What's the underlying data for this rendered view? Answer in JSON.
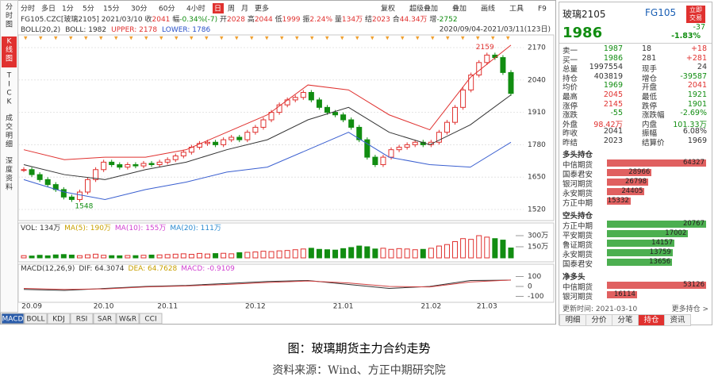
{
  "sidebar": [
    "分时图",
    "K线图",
    "TICK",
    "成交明细",
    "深度资料"
  ],
  "tabs": [
    "分时",
    "多日",
    "1分",
    "5分",
    "15分",
    "30分",
    "60分",
    "4小时",
    "日",
    "周",
    "月",
    "更多"
  ],
  "tools": [
    "复权",
    "超级叠加",
    "叠加",
    "画线",
    "工具",
    "F9",
    "隐藏"
  ],
  "info_head": [
    "FG105.CZC[玻璃2105]",
    "2021/03/10"
  ],
  "info": [
    {
      "k": "收",
      "v": "2041"
    },
    {
      "k": "幅",
      "v": "-0.34%(-7)"
    },
    {
      "k": "开",
      "v": "2028"
    },
    {
      "k": "高",
      "v": "2044"
    },
    {
      "k": "低",
      "v": "1999"
    },
    {
      "k": "振",
      "v": "2.24%"
    },
    {
      "k": "量",
      "v": "134万"
    },
    {
      "k": "结",
      "v": "2023"
    },
    {
      "k": "合",
      "v": "44.34万"
    },
    {
      "k": "增",
      "v": "-2752"
    }
  ],
  "boll_title": "BOLL(20,2)",
  "boll_items": [
    "BOLL: 1982",
    "UPPER: 2178",
    "LOWER: 1786"
  ],
  "range": "2020/09/04-2021/03/11(123日)",
  "kline": {
    "closes": [
      1680,
      1660,
      1640,
      1620,
      1600,
      1570,
      1560,
      1590,
      1640,
      1680,
      1710,
      1700,
      1690,
      1700,
      1695,
      1705,
      1700,
      1710,
      1720,
      1735,
      1750,
      1770,
      1785,
      1790,
      1780,
      1800,
      1810,
      1800,
      1830,
      1850,
      1880,
      1910,
      1940,
      1960,
      1970,
      1990,
      1960,
      1930,
      1910,
      1900,
      1880,
      1850,
      1800,
      1730,
      1700,
      1730,
      1760,
      1770,
      1780,
      1790,
      1780,
      1790,
      1830,
      1870,
      1930,
      2000,
      2060,
      2110,
      2140,
      2130,
      2070,
      1986
    ],
    "upper": [
      1760,
      1720,
      1730,
      1730,
      1760,
      1830,
      1900,
      2020,
      2000,
      1900,
      1840,
      2050,
      2180
    ],
    "mid": [
      1700,
      1660,
      1640,
      1680,
      1710,
      1760,
      1800,
      1880,
      1930,
      1830,
      1780,
      1860,
      1980
    ],
    "lower": [
      1640,
      1590,
      1560,
      1600,
      1630,
      1670,
      1690,
      1760,
      1830,
      1730,
      1700,
      1690,
      1790
    ],
    "high": 2159,
    "low": 1548,
    "ylim": [
      1520,
      2170
    ],
    "yticks": [
      2170,
      2040,
      1910,
      1780,
      1650,
      1520
    ]
  },
  "dates": [
    "20.09",
    "20.10",
    "20.11",
    "20.12",
    "21.01",
    "21.02",
    "21.03"
  ],
  "vol": {
    "title": "VOL: 134万",
    "items": [
      "MA(5): 190万",
      "MA(10): 155万",
      "MA(20): 111万"
    ],
    "values": [
      30,
      25,
      35,
      28,
      40,
      45,
      38,
      30,
      42,
      50,
      35,
      30,
      28,
      32,
      30,
      35,
      38,
      40,
      45,
      50,
      55,
      48,
      60,
      52,
      58,
      62,
      55,
      70,
      75,
      80,
      90,
      85,
      95,
      100,
      110,
      120,
      130,
      115,
      110,
      105,
      125,
      140,
      160,
      150,
      120,
      130,
      115,
      125,
      120,
      110,
      115,
      130,
      160,
      180,
      220,
      260,
      250,
      300,
      280,
      260,
      240,
      134
    ],
    "yticks": [
      {
        "value": 300,
        "label": "300万"
      },
      {
        "value": 150,
        "label": "150万"
      }
    ]
  },
  "macd": {
    "title": "MACD(12,26,9)",
    "items": [
      "DIF: 64.3074",
      "DEA: 64.7628",
      "MACD: -0.9109"
    ],
    "dif": [
      -30,
      -40,
      -20,
      0,
      10,
      30,
      50,
      60,
      20,
      -20,
      0,
      60,
      64
    ],
    "dea": [
      -20,
      -30,
      -25,
      -5,
      5,
      20,
      40,
      55,
      35,
      0,
      -5,
      45,
      65
    ],
    "yticks": [
      100,
      0,
      -100
    ]
  },
  "bottom_tabs": [
    "MACD",
    "BOLL",
    "KDJ",
    "RSI",
    "SAR",
    "W&R",
    "CCI"
  ],
  "quote": {
    "name": "玻璃2105",
    "code": "FG105",
    "button": "立即交易",
    "price": "1986",
    "change": "-37",
    "pct": "-1.83%",
    "rows": [
      [
        "卖一",
        "1987",
        "18",
        "+18"
      ],
      [
        "买一",
        "1986",
        "281",
        "+281"
      ],
      [
        "总量",
        "1997554",
        "现手",
        "24"
      ],
      [
        "持仓",
        "403819",
        "增仓",
        "-39587"
      ],
      [
        "均价",
        "1969",
        "开盘",
        "2041"
      ],
      [
        "最高",
        "2045",
        "最低",
        "1921"
      ],
      [
        "涨停",
        "2145",
        "跌停",
        "1901"
      ],
      [
        "涨跌",
        "-55",
        "涨跌幅",
        "-2.69%"
      ],
      [
        "外盘",
        "98.42万",
        "内盘",
        "101.33万"
      ],
      [
        "昨收",
        "2041",
        "振幅",
        "6.08%"
      ],
      [
        "昨结",
        "2023",
        "结算价",
        "1969"
      ]
    ],
    "colors": [
      "kgkr",
      "kgkr",
      "kkkk",
      "kkkg",
      "kgkr",
      "krkg",
      "krkg",
      "kgkg",
      "krkg",
      "kkkk",
      "kkkk"
    ]
  },
  "holdings": [
    {
      "title": "多头持仓",
      "color": "#e06060",
      "rows": [
        {
          "name": "中信期货",
          "value": 64327
        },
        {
          "name": "国泰君安",
          "value": 28966
        },
        {
          "name": "银河期货",
          "value": 26798
        },
        {
          "name": "永安期货",
          "value": 24405
        },
        {
          "name": "方正中期",
          "value": 15332
        }
      ]
    },
    {
      "title": "空头持仓",
      "color": "#4caf50",
      "rows": [
        {
          "name": "方正中期",
          "value": 20767
        },
        {
          "name": "平安期货",
          "value": 17002
        },
        {
          "name": "鲁证期货",
          "value": 14157
        },
        {
          "name": "永安期货",
          "value": 13759
        },
        {
          "name": "国泰君安",
          "value": 13656
        }
      ]
    },
    {
      "title": "净多头",
      "color": "#e06060",
      "rows": [
        {
          "name": "中信期货",
          "value": 53126
        },
        {
          "name": "银河期货",
          "value": 16114
        }
      ]
    }
  ],
  "update": "更新时间: 2021-03-10",
  "more": "更多持仓 >",
  "right_tabs": [
    "明细",
    "分价",
    "分笔",
    "持仓",
    "资讯"
  ],
  "caption": "图：玻璃期货主力合约走势",
  "source": "资料来源：Wind、方正中期研究院"
}
